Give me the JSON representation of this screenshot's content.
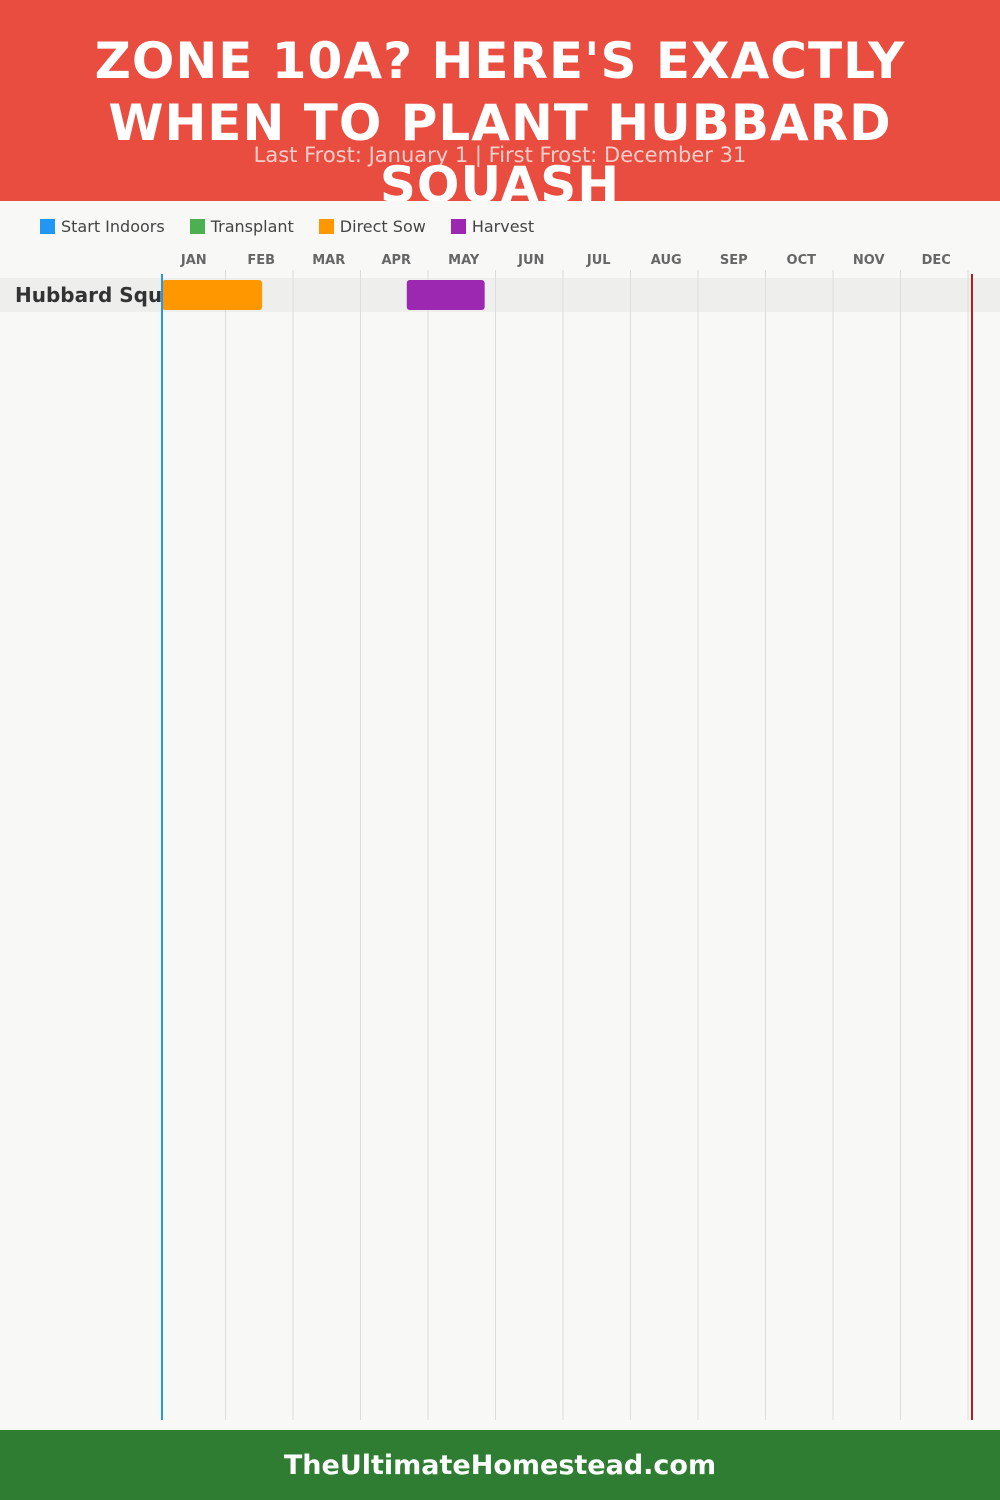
{
  "header": {
    "title": "ZONE 10A? HERE'S EXACTLY WHEN TO PLANT HUBBARD SQUASH",
    "subtitle": "Last Frost: January 1 | First Frost: December 31",
    "background_color": "#e84d3f"
  },
  "legend": [
    {
      "label": "Start Indoors",
      "color": "#2196f3"
    },
    {
      "label": "Transplant",
      "color": "#4caf50"
    },
    {
      "label": "Direct Sow",
      "color": "#ff9800"
    },
    {
      "label": "Harvest",
      "color": "#9c27b0"
    }
  ],
  "chart_data": {
    "type": "gantt",
    "x_axis": {
      "tick_labels": [
        "JAN",
        "FEB",
        "MAR",
        "APR",
        "MAY",
        "JUN",
        "JUL",
        "AUG",
        "SEP",
        "OCT",
        "NOV",
        "DEC"
      ],
      "range": [
        "Jan 1",
        "Dec 31"
      ],
      "grid": true
    },
    "markers": [
      {
        "name": "Last Frost",
        "date": "Jan 1",
        "color": "#2196f3"
      },
      {
        "name": "First Frost",
        "date": "Dec 31",
        "color": "#b71c1c"
      }
    ],
    "rows": [
      {
        "label": "Hubbard Squash",
        "bars": [
          {
            "phase": "Direct Sow",
            "start": "Jan 1",
            "end": "Feb 15",
            "color": "#ff9800"
          },
          {
            "phase": "Harvest",
            "start": "Apr 21",
            "end": "May 26",
            "color": "#9c27b0"
          }
        ]
      }
    ]
  },
  "footer": {
    "text": "TheUltimateHomestead.com",
    "background_color": "#2e7d32"
  }
}
